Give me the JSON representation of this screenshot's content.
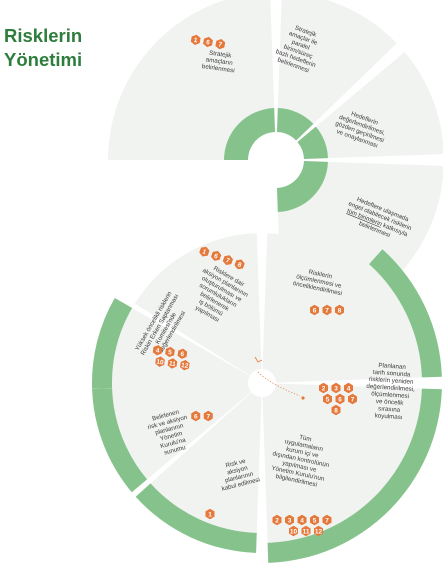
{
  "title": {
    "line1": "Risklerin",
    "line2": "Yönetimi"
  },
  "colors": {
    "segment": "#f1f3f1",
    "ring": "#86c38c",
    "badge": "#e5783b",
    "title": "#2e7d3c"
  },
  "segments": [
    {
      "name": "segment-stratejik-amaclar",
      "lines": [
        "Stratejik",
        "amaçların",
        "belirlenmesi"
      ],
      "badges": [
        [
          "1",
          "6",
          "7"
        ]
      ]
    },
    {
      "name": "segment-stratejik-hedefler",
      "lines": [
        "Stratejik",
        "amaçlar ile",
        "paralel",
        "birim/süreç",
        "bazlı hedeflerin",
        "belirlenmesi"
      ],
      "badges": []
    },
    {
      "name": "segment-hedef-onay",
      "lines": [
        "Hedeflerin",
        "değerlendirilmesi,",
        "gözden geçirilmesi",
        "ve onaylanması"
      ],
      "badges": []
    },
    {
      "name": "segment-risk-belirleme",
      "lines": [
        "Hedeflere ulaşmada",
        "engel olabilecek risklerin",
        "tüm birimlerin katkısıyla",
        "belirlenmesi"
      ],
      "underline": {
        "line": 2,
        "text": "tüm birimlerin"
      },
      "badges": []
    },
    {
      "name": "segment-risk-olcum",
      "lines": [
        "Risklerin",
        "ölçümlenmesi ve",
        "önceliklendirilmesi"
      ],
      "badges": [
        [
          "6",
          "7",
          "8"
        ]
      ]
    },
    {
      "name": "segment-aksiyon-plan",
      "lines": [
        "Risklere dair",
        "aksiyon planlarının",
        "oluşturulması ve",
        "sorumlulukların",
        "belirlenerek",
        "iş bölümü",
        "yapılması"
      ],
      "badges": [
        [
          "1",
          "6",
          "7",
          "8"
        ]
      ]
    },
    {
      "name": "segment-yuksek-oncelik",
      "lines": [
        "Yüksek öncelikli risklerin",
        "Riskin Erken Saptanması",
        "Komitesi'nde",
        "değerlendirilmesi"
      ],
      "badges": [
        [
          "4",
          "5",
          "6"
        ],
        [
          "10",
          "11",
          "12"
        ]
      ]
    },
    {
      "name": "segment-yk-sunum",
      "lines": [
        "Belirlenen",
        "risk ve aksiyon",
        "planlarının",
        "Yönetim",
        "Kurulu'na",
        "sunumu"
      ],
      "badges": [
        [
          "6",
          "7"
        ]
      ]
    },
    {
      "name": "segment-kabul",
      "lines": [
        "Risk ve",
        "aksiyon",
        "planlarının",
        "kabul edilmesi"
      ],
      "badges": [
        [
          "1"
        ]
      ]
    },
    {
      "name": "segment-ic-kontrol",
      "lines": [
        "Tüm",
        "uygulamaların",
        "kurum içi ve",
        "dışından kontrolünün",
        "yapılması ve",
        "Yönetim Kurulu'nun",
        "bilgilendirilmesi"
      ],
      "badges": [
        [
          "2",
          "3",
          "4",
          "5",
          "7"
        ],
        [
          "10",
          "11",
          "12"
        ]
      ]
    },
    {
      "name": "segment-yeniden-degerlendirme",
      "lines": [
        "Planlanan",
        "tarih sonunda",
        "risklerin yeniden",
        "değerlendirilmesi,",
        "ölçümlenmesi",
        "ve öncelik",
        "sırasına",
        "koyulması"
      ],
      "badges": [
        [
          "2",
          "3",
          "4"
        ],
        [
          "5",
          "6",
          "7"
        ],
        [
          "8"
        ]
      ]
    }
  ]
}
